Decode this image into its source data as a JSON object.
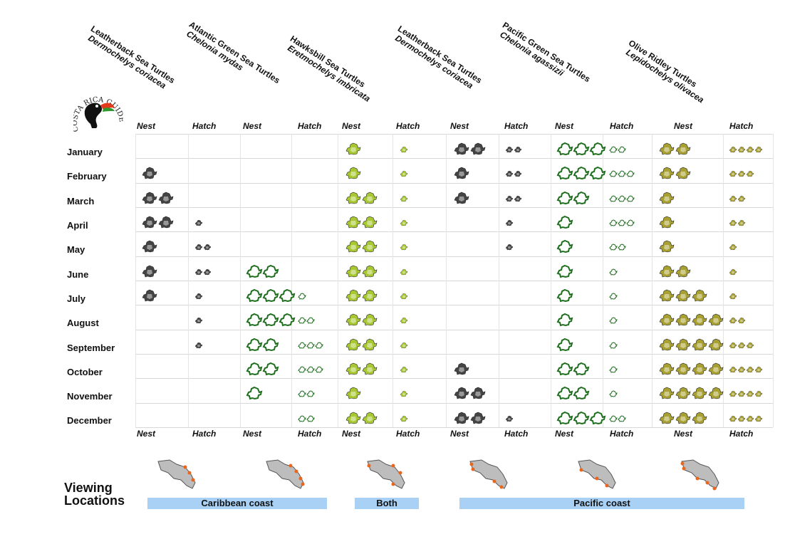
{
  "species": [
    {
      "common": "Leatherback Sea Turtles",
      "scientific": "Dermochelys coriacea"
    },
    {
      "common": "Atlantic Green Sea Turtles",
      "scientific": "Chelonia mydas"
    },
    {
      "common": "Hawksbill Sea Turtles",
      "scientific": "Eretmochelys imbricata"
    },
    {
      "common": "Leatherback Sea Turtles",
      "scientific": "Dermochelys coriacea"
    },
    {
      "common": "Pacific Green Sea Turtles",
      "scientific": "Chelonia agassizii"
    },
    {
      "common": "Olive Ridley Turtles",
      "scientific": "Lepidochelys olivacea"
    }
  ],
  "logo_text": "COSTA RICA GUIDE",
  "column_labels": [
    "Nest",
    "Hatch",
    "Nest",
    "Hatch",
    "Nest",
    "Hatch",
    "Nest",
    "Hatch",
    "Nest",
    "Hatch",
    "Nest",
    "Hatch"
  ],
  "months": [
    "January",
    "February",
    "March",
    "April",
    "May",
    "June",
    "July",
    "August",
    "September",
    "October",
    "November",
    "December"
  ],
  "grid_counts": [
    [
      0,
      0,
      0,
      0,
      1,
      1,
      2,
      2,
      3,
      2,
      2,
      4
    ],
    [
      1,
      0,
      0,
      0,
      1,
      1,
      1,
      2,
      3,
      3,
      2,
      3
    ],
    [
      2,
      0,
      0,
      0,
      2,
      1,
      1,
      2,
      2,
      3,
      1,
      2
    ],
    [
      2,
      1,
      0,
      0,
      2,
      1,
      0,
      1,
      1,
      3,
      1,
      2
    ],
    [
      1,
      2,
      0,
      0,
      2,
      1,
      0,
      1,
      1,
      2,
      1,
      1
    ],
    [
      1,
      2,
      2,
      0,
      2,
      1,
      0,
      0,
      1,
      1,
      2,
      1
    ],
    [
      1,
      1,
      3,
      1,
      2,
      1,
      0,
      0,
      1,
      1,
      3,
      1
    ],
    [
      0,
      1,
      3,
      2,
      2,
      1,
      0,
      0,
      1,
      1,
      4,
      2
    ],
    [
      0,
      1,
      2,
      3,
      2,
      1,
      0,
      0,
      1,
      1,
      4,
      3
    ],
    [
      0,
      0,
      2,
      3,
      2,
      1,
      1,
      0,
      2,
      1,
      4,
      4
    ],
    [
      0,
      0,
      1,
      2,
      1,
      1,
      2,
      0,
      2,
      1,
      4,
      4
    ],
    [
      0,
      0,
      0,
      2,
      2,
      1,
      2,
      1,
      3,
      2,
      3,
      4
    ]
  ],
  "species_colors": {
    "leatherback": "#444444",
    "atlantic_green": "#1e6e1e",
    "hawksbill": "#a8c832",
    "pacific_green": "#1e6e1e",
    "olive_ridley": "#a8a030"
  },
  "viewing": {
    "title": "Viewing Locations",
    "caribbean": "Caribbean coast",
    "both": "Both",
    "pacific": "Pacific coast"
  }
}
